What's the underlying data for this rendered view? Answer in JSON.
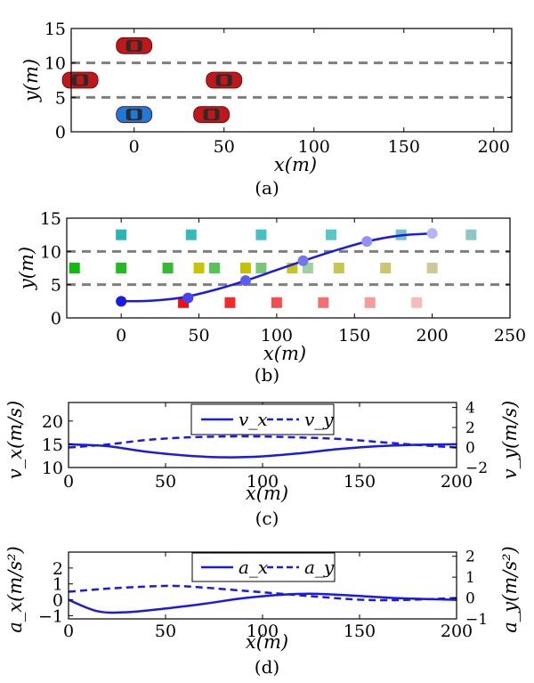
{
  "chart_data": [
    {
      "panel": "a",
      "type": "scatter",
      "caption": "(a)",
      "xlabel": "x(m)",
      "ylabel": "y(m)",
      "xlim": [
        -35,
        210
      ],
      "ylim": [
        0,
        15
      ],
      "xticks": [
        0,
        50,
        100,
        150,
        200
      ],
      "yticks": [
        0,
        5,
        10,
        15
      ],
      "xtick_labels": [
        "0",
        "50",
        "100",
        "150",
        "200"
      ],
      "ytick_labels": [
        "0",
        "5",
        "10",
        "15"
      ],
      "lane_lines": [
        5,
        10
      ],
      "vehicles": [
        {
          "x": 0,
          "y": 12.5,
          "color": "#c0171b",
          "role": "other"
        },
        {
          "x": -30,
          "y": 7.5,
          "color": "#c0171b",
          "role": "other"
        },
        {
          "x": 50,
          "y": 7.5,
          "color": "#c0171b",
          "role": "other"
        },
        {
          "x": 0,
          "y": 2.5,
          "color": "#1e7ad8",
          "role": "ego"
        },
        {
          "x": 43,
          "y": 2.5,
          "color": "#c0171b",
          "role": "other"
        }
      ]
    },
    {
      "panel": "b",
      "type": "scatter",
      "caption": "(b)",
      "xlabel": "x(m)",
      "ylabel": "y(m)",
      "xlim": [
        -35,
        250
      ],
      "ylim": [
        0,
        15
      ],
      "xticks": [
        0,
        50,
        100,
        150,
        200,
        250
      ],
      "yticks": [
        0,
        5,
        10,
        15
      ],
      "xtick_labels": [
        "0",
        "50",
        "100",
        "150",
        "200",
        "250"
      ],
      "ytick_labels": [
        "0",
        "5",
        "10",
        "15"
      ],
      "lane_lines": [
        5,
        10
      ],
      "obstacle_squares": [
        {
          "x": 0,
          "y": 12.5,
          "color": "#29b5b5"
        },
        {
          "x": 45,
          "y": 12.5,
          "color": "#35baba"
        },
        {
          "x": 90,
          "y": 12.5,
          "color": "#44c2c2"
        },
        {
          "x": 135,
          "y": 12.5,
          "color": "#58c7c7"
        },
        {
          "x": 180,
          "y": 12.5,
          "color": "#72c4c4"
        },
        {
          "x": 225,
          "y": 12.5,
          "color": "#8fc5c5"
        },
        {
          "x": -30,
          "y": 7.5,
          "color": "#11bb11"
        },
        {
          "x": 0,
          "y": 7.5,
          "color": "#22bb22"
        },
        {
          "x": 30,
          "y": 7.5,
          "color": "#33bb33"
        },
        {
          "x": 60,
          "y": 7.5,
          "color": "#55c355"
        },
        {
          "x": 90,
          "y": 7.5,
          "color": "#77c777"
        },
        {
          "x": 120,
          "y": 7.5,
          "color": "#9fd09f"
        },
        {
          "x": 50,
          "y": 7.5,
          "color": "#c9c300"
        },
        {
          "x": 80,
          "y": 7.5,
          "color": "#c6c000"
        },
        {
          "x": 110,
          "y": 7.5,
          "color": "#c9c520"
        },
        {
          "x": 140,
          "y": 7.5,
          "color": "#c9c550"
        },
        {
          "x": 170,
          "y": 7.5,
          "color": "#cbc770"
        },
        {
          "x": 200,
          "y": 7.5,
          "color": "#cdca98"
        },
        {
          "x": 40,
          "y": 2.3,
          "color": "#ee1111"
        },
        {
          "x": 70,
          "y": 2.3,
          "color": "#f02a2a"
        },
        {
          "x": 100,
          "y": 2.3,
          "color": "#f25050"
        },
        {
          "x": 130,
          "y": 2.3,
          "color": "#f47070"
        },
        {
          "x": 160,
          "y": 2.3,
          "color": "#f69a9a"
        },
        {
          "x": 190,
          "y": 2.3,
          "color": "#f8bbbb"
        }
      ],
      "trajectory": {
        "color": "#1a1ae6",
        "x": [
          0,
          20,
          40,
          60,
          80,
          100,
          120,
          140,
          160,
          180,
          200
        ],
        "y": [
          2.5,
          2.6,
          3.1,
          4.2,
          5.6,
          7.2,
          8.8,
          10.3,
          11.6,
          12.4,
          12.7
        ]
      },
      "waypoints": [
        {
          "x": 0,
          "y": 2.5,
          "color": "#1a1ae6"
        },
        {
          "x": 43,
          "y": 3.0,
          "color": "#4444ee"
        },
        {
          "x": 80,
          "y": 5.6,
          "color": "#5c5cee"
        },
        {
          "x": 117,
          "y": 8.6,
          "color": "#7474f0"
        },
        {
          "x": 158,
          "y": 11.5,
          "color": "#9292f3"
        },
        {
          "x": 200,
          "y": 12.7,
          "color": "#b6b6f7"
        }
      ]
    },
    {
      "panel": "c",
      "type": "line",
      "caption": "(c)",
      "xlabel": "x(m)",
      "ylabel": "v_x(m/s)",
      "y2label": "v_y(m/s)",
      "xlim": [
        0,
        200
      ],
      "ylim": [
        10,
        24
      ],
      "y2lim": [
        -2,
        4.5
      ],
      "xticks": [
        0,
        50,
        100,
        150,
        200
      ],
      "yticks": [
        10,
        15,
        20
      ],
      "y2ticks": [
        -2,
        0,
        2,
        4
      ],
      "xtick_labels": [
        "0",
        "50",
        "100",
        "150",
        "200"
      ],
      "ytick_labels": [
        "10",
        "15",
        "20"
      ],
      "y2tick_labels": [
        "−2",
        "0",
        "2",
        "4"
      ],
      "legend": [
        "v_x",
        "v_y"
      ],
      "legend_position": "top-center",
      "color": "#1a1ae6",
      "series": [
        {
          "name": "v_x",
          "axis": "left",
          "style": "solid",
          "x": [
            0,
            20,
            40,
            60,
            80,
            100,
            120,
            140,
            160,
            180,
            200
          ],
          "values": [
            15,
            14.6,
            13.4,
            12.6,
            12.2,
            12.4,
            13.1,
            14.0,
            14.6,
            14.9,
            15
          ]
        },
        {
          "name": "v_y",
          "axis": "right",
          "style": "dashed",
          "x": [
            0,
            20,
            40,
            60,
            80,
            100,
            120,
            140,
            160,
            180,
            200
          ],
          "values": [
            0,
            0.3,
            0.75,
            1.0,
            1.1,
            1.1,
            1.0,
            0.85,
            0.55,
            0.25,
            0
          ]
        }
      ]
    },
    {
      "panel": "d",
      "type": "line",
      "caption": "(d)",
      "xlabel": "x(m)",
      "ylabel": "a_x(m/s²)",
      "y2label": "a_y(m/s²)",
      "xlim": [
        0,
        200
      ],
      "ylim": [
        -1.2,
        3
      ],
      "y2lim": [
        -1,
        2.2
      ],
      "xticks": [
        0,
        50,
        100,
        150,
        200
      ],
      "yticks": [
        -1,
        0,
        1,
        2
      ],
      "y2ticks": [
        -1,
        0,
        1,
        2
      ],
      "xtick_labels": [
        "0",
        "50",
        "100",
        "150",
        "200"
      ],
      "ytick_labels": [
        "−1",
        "0",
        "1",
        "2"
      ],
      "y2tick_labels": [
        "−1",
        "0",
        "1",
        "2"
      ],
      "legend": [
        "a_x",
        "a_y"
      ],
      "legend_position": "top-center",
      "color": "#1a1ae6",
      "series": [
        {
          "name": "a_x",
          "axis": "left",
          "style": "solid",
          "x": [
            0,
            15,
            30,
            50,
            70,
            90,
            110,
            125,
            145,
            170,
            200
          ],
          "values": [
            0,
            -0.72,
            -0.78,
            -0.55,
            -0.25,
            0.1,
            0.32,
            0.38,
            0.28,
            0.1,
            0
          ]
        },
        {
          "name": "a_y",
          "axis": "right",
          "style": "dashed",
          "x": [
            0,
            20,
            40,
            55,
            70,
            90,
            110,
            130,
            150,
            170,
            200
          ],
          "values": [
            0.3,
            0.45,
            0.55,
            0.58,
            0.5,
            0.35,
            0.2,
            0.05,
            -0.08,
            -0.1,
            0
          ]
        }
      ]
    }
  ]
}
